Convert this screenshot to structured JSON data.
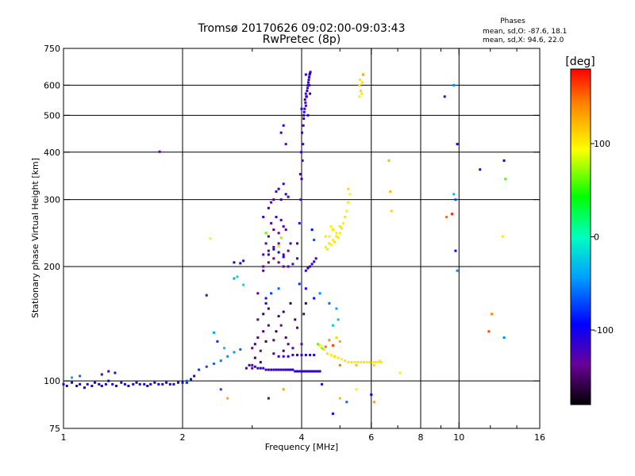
{
  "chart_data": {
    "type": "scatter",
    "title": "Tromsø 20170626 09:02:00-09:03:43",
    "subtitle": "RwPretec (8p)",
    "phases": {
      "heading": "Phases",
      "line_o": "mean, sd,O: -87.6, 18.1",
      "line_x": "mean, sd,X:  94.6, 22.0"
    },
    "xlabel": "Frequency [MHz]",
    "ylabel": "Stationary phase Virtual Height [km]",
    "x_scale": "log2",
    "y_scale": "log",
    "xlim": [
      1,
      16
    ],
    "ylim": [
      75,
      750
    ],
    "x_ticks": [
      {
        "v": 1,
        "label": "1"
      },
      {
        "v": 2,
        "label": "2"
      },
      {
        "v": 4,
        "label": "4"
      },
      {
        "v": 6,
        "label": "6"
      },
      {
        "v": 8,
        "label": "8"
      },
      {
        "v": 10,
        "label": "10"
      },
      {
        "v": 16,
        "label": "16"
      }
    ],
    "x_minor_ticks": [
      3,
      5,
      7,
      9,
      12,
      14
    ],
    "x_grid": [
      2,
      4,
      6,
      8,
      10
    ],
    "y_ticks": [
      {
        "v": 75,
        "label": "75"
      },
      {
        "v": 100,
        "label": "100"
      },
      {
        "v": 200,
        "label": "200"
      },
      {
        "v": 300,
        "label": "300"
      },
      {
        "v": 400,
        "label": "400"
      },
      {
        "v": 500,
        "label": "500"
      },
      {
        "v": 600,
        "label": "600"
      },
      {
        "v": 750,
        "label": "750"
      }
    ],
    "y_grid": [
      100,
      200,
      300,
      400,
      500,
      600
    ],
    "colorbar": {
      "unit": "[deg]",
      "range": [
        -180,
        180
      ],
      "ticks": [
        {
          "v": 100,
          "label": "100"
        },
        {
          "v": 0,
          "label": "0"
        },
        {
          "v": -100,
          "label": "-100"
        }
      ]
    },
    "points": [
      [
        1.0,
        98,
        -100
      ],
      [
        1.02,
        97,
        -105
      ],
      [
        1.05,
        99,
        -98
      ],
      [
        1.08,
        97,
        -110
      ],
      [
        1.1,
        98,
        -100
      ],
      [
        1.13,
        96,
        -95
      ],
      [
        1.15,
        98,
        -100
      ],
      [
        1.18,
        97,
        -108
      ],
      [
        1.2,
        99,
        -102
      ],
      [
        1.23,
        98,
        -96
      ],
      [
        1.25,
        97,
        -100
      ],
      [
        1.28,
        98,
        -104
      ],
      [
        1.3,
        100,
        -100
      ],
      [
        1.33,
        98,
        -106
      ],
      [
        1.36,
        97,
        -99
      ],
      [
        1.4,
        99,
        -100
      ],
      [
        1.43,
        98,
        -103
      ],
      [
        1.46,
        97,
        -98
      ],
      [
        1.5,
        98,
        -101
      ],
      [
        1.53,
        99,
        -100
      ],
      [
        1.56,
        98,
        -107
      ],
      [
        1.6,
        98,
        -99
      ],
      [
        1.63,
        97,
        -100
      ],
      [
        1.66,
        98,
        -104
      ],
      [
        1.7,
        99,
        -100
      ],
      [
        1.74,
        98,
        -97
      ],
      [
        1.78,
        98,
        -102
      ],
      [
        1.82,
        99,
        -100
      ],
      [
        1.86,
        98,
        -105
      ],
      [
        1.9,
        98,
        -99
      ],
      [
        1.95,
        99,
        -100
      ],
      [
        2.0,
        99,
        -102
      ],
      [
        2.05,
        99,
        -96
      ],
      [
        2.1,
        101,
        -100
      ],
      [
        2.14,
        103,
        -98
      ],
      [
        1.25,
        104,
        -130
      ],
      [
        1.3,
        106,
        -120
      ],
      [
        1.35,
        105,
        -110
      ],
      [
        1.05,
        102,
        -40
      ],
      [
        1.1,
        103,
        -60
      ],
      [
        1.75,
        401,
        -130
      ],
      [
        2.35,
        237,
        90
      ],
      [
        2.05,
        100,
        -60
      ],
      [
        2.2,
        107,
        -75
      ],
      [
        2.3,
        109,
        -70
      ],
      [
        2.4,
        111,
        -60
      ],
      [
        2.5,
        113,
        -55
      ],
      [
        2.6,
        116,
        -50
      ],
      [
        2.7,
        119,
        -45
      ],
      [
        2.8,
        121,
        -60
      ],
      [
        2.3,
        168,
        -130
      ],
      [
        2.4,
        134,
        -40
      ],
      [
        2.45,
        127,
        -80
      ],
      [
        2.55,
        122,
        -30
      ],
      [
        2.7,
        205,
        -100
      ],
      [
        2.8,
        204,
        -110
      ],
      [
        2.85,
        207,
        -90
      ],
      [
        2.75,
        188,
        -20
      ],
      [
        2.85,
        179,
        -15
      ],
      [
        2.7,
        186,
        -40
      ],
      [
        2.9,
        108,
        -120
      ],
      [
        2.95,
        110,
        -110
      ],
      [
        3.0,
        108,
        -130
      ],
      [
        3.05,
        109,
        -120
      ],
      [
        3.1,
        108,
        -115
      ],
      [
        3.15,
        108,
        -110
      ],
      [
        3.2,
        108,
        -125
      ],
      [
        3.25,
        107,
        -118
      ],
      [
        3.3,
        107,
        -112
      ],
      [
        3.35,
        107,
        -120
      ],
      [
        3.4,
        107,
        -110
      ],
      [
        3.45,
        107,
        -115
      ],
      [
        3.5,
        107,
        -118
      ],
      [
        3.55,
        107,
        -112
      ],
      [
        3.6,
        107,
        -120
      ],
      [
        3.65,
        107,
        -115
      ],
      [
        3.7,
        107,
        -110
      ],
      [
        3.75,
        107,
        -117
      ],
      [
        3.8,
        107,
        -113
      ],
      [
        3.85,
        106,
        -118
      ],
      [
        3.9,
        106,
        -112
      ],
      [
        3.95,
        106,
        -115
      ],
      [
        4.0,
        106,
        -118
      ],
      [
        4.05,
        106,
        -112
      ],
      [
        4.1,
        106,
        -115
      ],
      [
        4.15,
        106,
        -110
      ],
      [
        4.2,
        106,
        -117
      ],
      [
        4.25,
        106,
        -113
      ],
      [
        4.3,
        106,
        -115
      ],
      [
        4.35,
        106,
        -110
      ],
      [
        4.4,
        106,
        -120
      ],
      [
        4.45,
        106,
        -112
      ],
      [
        3.5,
        116,
        -110
      ],
      [
        3.6,
        116,
        -112
      ],
      [
        3.7,
        116,
        -110
      ],
      [
        3.8,
        117,
        -115
      ],
      [
        3.9,
        117,
        -112
      ],
      [
        4.0,
        117,
        -110
      ],
      [
        4.1,
        117,
        -108
      ],
      [
        4.2,
        117,
        -112
      ],
      [
        4.3,
        117,
        -110
      ],
      [
        3.0,
        122,
        -140
      ],
      [
        3.05,
        125,
        -150
      ],
      [
        3.1,
        130,
        -145
      ],
      [
        3.15,
        120,
        -135
      ],
      [
        3.2,
        135,
        -150
      ],
      [
        3.25,
        127,
        -155
      ],
      [
        3.3,
        140,
        -140
      ],
      [
        3.1,
        145,
        -130
      ],
      [
        3.2,
        150,
        -155
      ],
      [
        3.3,
        155,
        -150
      ],
      [
        3.25,
        165,
        -120
      ],
      [
        3.4,
        128,
        -145
      ],
      [
        3.45,
        135,
        -160
      ],
      [
        3.5,
        148,
        -150
      ],
      [
        3.55,
        140,
        -130
      ],
      [
        3.6,
        152,
        -155
      ],
      [
        3.65,
        130,
        -150
      ],
      [
        3.7,
        125,
        -145
      ],
      [
        3.75,
        160,
        -160
      ],
      [
        3.85,
        145,
        -150
      ],
      [
        3.9,
        138,
        -120
      ],
      [
        3.0,
        110,
        -140
      ],
      [
        3.05,
        115,
        -155
      ],
      [
        3.15,
        112,
        -150
      ],
      [
        3.4,
        118,
        -145
      ],
      [
        3.6,
        120,
        -150
      ],
      [
        3.8,
        122,
        -130
      ],
      [
        4.0,
        125,
        -140
      ],
      [
        4.05,
        150,
        -150
      ],
      [
        4.1,
        160,
        -160
      ],
      [
        3.1,
        170,
        -130
      ],
      [
        3.25,
        160,
        -90
      ],
      [
        3.35,
        170,
        -70
      ],
      [
        3.5,
        175,
        -60
      ],
      [
        3.95,
        180,
        -80
      ],
      [
        4.1,
        175,
        -100
      ],
      [
        4.3,
        165,
        -90
      ],
      [
        4.45,
        170,
        -50
      ],
      [
        4.7,
        160,
        -60
      ],
      [
        4.9,
        155,
        -40
      ],
      [
        4.95,
        145,
        -30
      ],
      [
        4.8,
        140,
        -20
      ],
      [
        4.9,
        130,
        110
      ],
      [
        5.0,
        127,
        130
      ],
      [
        4.7,
        128,
        140
      ],
      [
        4.6,
        123,
        150
      ],
      [
        4.8,
        124,
        160
      ],
      [
        3.2,
        215,
        -130
      ],
      [
        3.3,
        220,
        -140
      ],
      [
        3.4,
        225,
        -135
      ],
      [
        3.5,
        230,
        -140
      ],
      [
        3.6,
        215,
        -130
      ],
      [
        3.7,
        220,
        -135
      ],
      [
        3.2,
        200,
        -140
      ],
      [
        3.3,
        205,
        -135
      ],
      [
        3.4,
        210,
        -140
      ],
      [
        3.5,
        205,
        -135
      ],
      [
        3.6,
        200,
        -140
      ],
      [
        3.7,
        200,
        -130
      ],
      [
        3.8,
        203,
        -125
      ],
      [
        3.9,
        210,
        -120
      ],
      [
        3.3,
        240,
        -130
      ],
      [
        3.4,
        250,
        -140
      ],
      [
        3.5,
        245,
        -135
      ],
      [
        3.6,
        255,
        -130
      ],
      [
        3.2,
        195,
        -145
      ],
      [
        3.25,
        230,
        -130
      ],
      [
        3.35,
        260,
        -130
      ],
      [
        3.45,
        270,
        -120
      ],
      [
        3.55,
        265,
        -125
      ],
      [
        3.65,
        250,
        -130
      ],
      [
        3.75,
        230,
        -120
      ],
      [
        3.3,
        215,
        -100
      ],
      [
        3.4,
        222,
        -110
      ],
      [
        3.5,
        218,
        -90
      ],
      [
        3.6,
        212,
        -100
      ],
      [
        3.55,
        238,
        70
      ],
      [
        3.25,
        245,
        60
      ],
      [
        3.5,
        226,
        80
      ],
      [
        3.2,
        270,
        -120
      ],
      [
        3.3,
        285,
        -110
      ],
      [
        3.4,
        300,
        -120
      ],
      [
        3.5,
        320,
        -110
      ],
      [
        3.6,
        330,
        -120
      ],
      [
        3.35,
        295,
        -130
      ],
      [
        3.45,
        315,
        -125
      ],
      [
        3.55,
        300,
        -120
      ],
      [
        3.65,
        310,
        -110
      ],
      [
        3.7,
        305,
        -125
      ],
      [
        3.55,
        450,
        -120
      ],
      [
        3.6,
        470,
        -110
      ],
      [
        3.65,
        420,
        -130
      ],
      [
        3.9,
        230,
        -115
      ],
      [
        3.95,
        260,
        -118
      ],
      [
        3.98,
        300,
        -115
      ],
      [
        4.0,
        340,
        -118
      ],
      [
        4.02,
        380,
        -120
      ],
      [
        4.03,
        420,
        -118
      ],
      [
        4.04,
        470,
        -115
      ],
      [
        4.05,
        500,
        -118
      ],
      [
        4.07,
        520,
        -115
      ],
      [
        4.09,
        540,
        -118
      ],
      [
        4.11,
        560,
        -115
      ],
      [
        4.13,
        580,
        -118
      ],
      [
        4.15,
        600,
        -115
      ],
      [
        4.17,
        620,
        -118
      ],
      [
        4.19,
        640,
        -115
      ],
      [
        4.21,
        650,
        -120
      ],
      [
        4.1,
        530,
        -118
      ],
      [
        4.12,
        560,
        -112
      ],
      [
        4.14,
        590,
        -117
      ],
      [
        4.16,
        610,
        -114
      ],
      [
        4.05,
        490,
        -113
      ],
      [
        4.08,
        550,
        -116
      ],
      [
        4.18,
        630,
        -117
      ],
      [
        4.2,
        645,
        -113
      ],
      [
        4.0,
        520,
        -118
      ],
      [
        3.97,
        350,
        -120
      ],
      [
        3.99,
        400,
        -117
      ],
      [
        4.01,
        450,
        -119
      ],
      [
        4.06,
        510,
        -114
      ],
      [
        4.1,
        570,
        -120
      ],
      [
        4.18,
        600,
        -118
      ],
      [
        4.1,
        640,
        -114
      ],
      [
        4.15,
        500,
        -110
      ],
      [
        4.2,
        570,
        -110
      ],
      [
        4.1,
        195,
        -118
      ],
      [
        4.15,
        198,
        -115
      ],
      [
        4.2,
        200,
        -117
      ],
      [
        4.25,
        203,
        -116
      ],
      [
        4.3,
        206,
        -118
      ],
      [
        4.35,
        210,
        -115
      ],
      [
        4.25,
        250,
        -90
      ],
      [
        4.3,
        235,
        -70
      ],
      [
        4.45,
        124,
        100
      ],
      [
        4.55,
        121,
        110
      ],
      [
        4.65,
        118,
        105
      ],
      [
        4.75,
        117,
        100
      ],
      [
        4.85,
        116,
        108
      ],
      [
        4.95,
        115,
        104
      ],
      [
        5.05,
        114,
        100
      ],
      [
        5.15,
        113,
        106
      ],
      [
        5.25,
        112,
        102
      ],
      [
        5.35,
        112,
        104
      ],
      [
        5.45,
        112,
        100
      ],
      [
        5.55,
        112,
        106
      ],
      [
        5.65,
        112,
        102
      ],
      [
        5.75,
        112,
        104
      ],
      [
        5.85,
        112,
        100
      ],
      [
        5.95,
        112,
        106
      ],
      [
        6.05,
        112,
        102
      ],
      [
        6.15,
        112,
        104
      ],
      [
        6.25,
        112,
        100
      ],
      [
        6.35,
        112,
        106
      ],
      [
        4.4,
        125,
        60
      ],
      [
        4.5,
        122,
        70
      ],
      [
        5.0,
        110,
        150
      ],
      [
        5.5,
        110,
        120
      ],
      [
        6.1,
        110,
        110
      ],
      [
        6.3,
        113,
        100
      ],
      [
        4.6,
        225,
        100
      ],
      [
        4.7,
        230,
        105
      ],
      [
        4.8,
        235,
        100
      ],
      [
        4.9,
        240,
        105
      ],
      [
        5.0,
        245,
        100
      ],
      [
        5.05,
        252,
        104
      ],
      [
        5.1,
        260,
        100
      ],
      [
        5.15,
        270,
        105
      ],
      [
        5.2,
        280,
        100
      ],
      [
        5.25,
        295,
        104
      ],
      [
        5.3,
        310,
        100
      ],
      [
        4.65,
        222,
        104
      ],
      [
        4.75,
        228,
        100
      ],
      [
        4.85,
        232,
        106
      ],
      [
        4.95,
        238,
        102
      ],
      [
        4.7,
        240,
        100
      ],
      [
        4.8,
        250,
        104
      ],
      [
        4.9,
        245,
        102
      ],
      [
        5.0,
        255,
        106
      ],
      [
        4.6,
        240,
        104
      ],
      [
        4.75,
        255,
        100
      ],
      [
        5.25,
        320,
        110
      ],
      [
        5.6,
        600,
        105
      ],
      [
        5.65,
        580,
        110
      ],
      [
        5.7,
        610,
        108
      ],
      [
        5.62,
        620,
        104
      ],
      [
        5.68,
        570,
        106
      ],
      [
        5.72,
        640,
        130
      ],
      [
        5.6,
        560,
        100
      ],
      [
        6.65,
        380,
        120
      ],
      [
        6.7,
        315,
        120
      ],
      [
        6.75,
        280,
        110
      ],
      [
        7.1,
        105,
        100
      ],
      [
        5.0,
        90,
        120
      ],
      [
        5.5,
        95,
        100
      ],
      [
        6.1,
        88,
        130
      ],
      [
        5.2,
        88,
        -60
      ],
      [
        4.8,
        82,
        -100
      ],
      [
        3.3,
        90,
        -140
      ],
      [
        2.6,
        90,
        130
      ],
      [
        3.6,
        95,
        130
      ],
      [
        2.5,
        95,
        -70
      ],
      [
        4.5,
        98,
        -100
      ],
      [
        6.0,
        92,
        -100
      ],
      [
        9.2,
        560,
        -130
      ],
      [
        9.7,
        600,
        -50
      ],
      [
        9.9,
        420,
        -100
      ],
      [
        9.7,
        310,
        -30
      ],
      [
        9.8,
        300,
        -70
      ],
      [
        9.6,
        275,
        170
      ],
      [
        9.3,
        270,
        150
      ],
      [
        9.8,
        220,
        -100
      ],
      [
        9.9,
        195,
        -50
      ],
      [
        11.3,
        360,
        -120
      ],
      [
        12.1,
        150,
        140
      ],
      [
        11.9,
        135,
        160
      ],
      [
        13.0,
        380,
        -100
      ],
      [
        13.1,
        340,
        60
      ],
      [
        12.9,
        240,
        100
      ],
      [
        13.0,
        130,
        -50
      ]
    ]
  }
}
